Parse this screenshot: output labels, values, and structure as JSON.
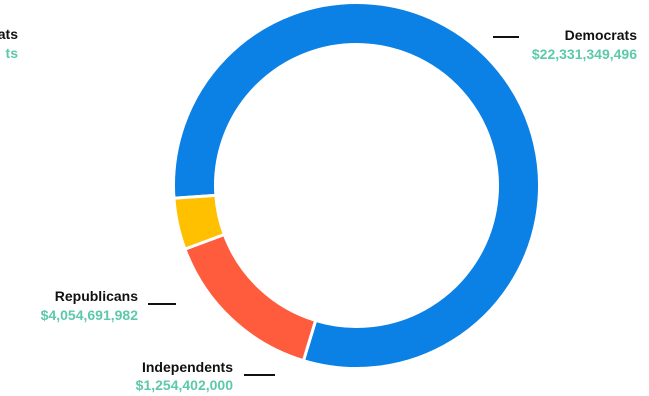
{
  "chart_data": {
    "type": "pie",
    "subtype": "donut",
    "title": "",
    "categories": [
      "Democrats",
      "Republicans",
      "Independents"
    ],
    "values": [
      22331349496,
      4054691982,
      1254402000
    ],
    "value_labels": [
      "$22,331,349,496",
      "$4,054,691,982",
      "$1,254,402,000"
    ],
    "colors": [
      "#0b80e5",
      "#ff5b3d",
      "#ffc000"
    ],
    "label_value_color": "#5cc9aa",
    "legend": "none"
  },
  "clipped_label": {
    "name_fragment": "ats",
    "value_fragment": "ts"
  }
}
